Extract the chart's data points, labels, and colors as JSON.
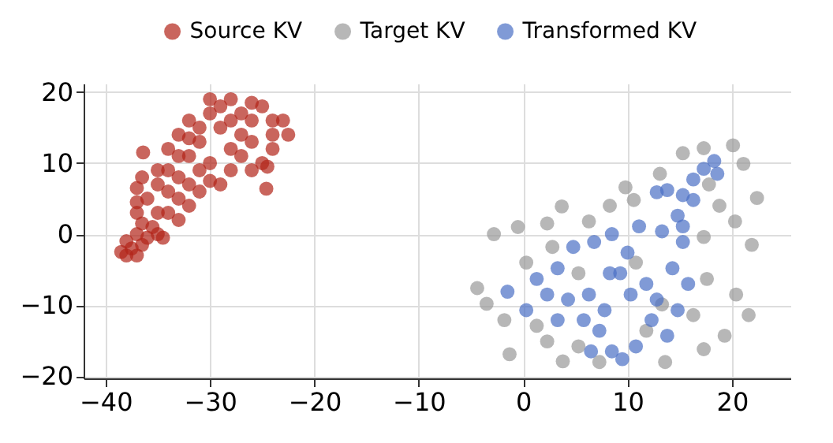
{
  "chart_data": {
    "type": "scatter",
    "xlim": [
      -42.1,
      25.6
    ],
    "ylim": [
      -20.3,
      21.2
    ],
    "xticks": [
      {
        "value": -40,
        "label": "−40"
      },
      {
        "value": -30,
        "label": "−30"
      },
      {
        "value": -20,
        "label": "−20"
      },
      {
        "value": -10,
        "label": "−10"
      },
      0,
      10,
      20
    ],
    "yticks": [
      {
        "value": -20,
        "label": "−20"
      },
      {
        "value": -10,
        "label": "−10"
      },
      0,
      10,
      20
    ],
    "grid": true,
    "legend": "top",
    "marker": "circle",
    "series": [
      {
        "name": "Source KV",
        "color": "#b22418",
        "x": [
          -38.5,
          -38,
          -37.5,
          -37,
          -36.5,
          -38,
          -37,
          -36,
          -35.5,
          -36.5,
          -37,
          -35,
          -36,
          -37,
          -36.5,
          -36.4,
          -35,
          -34,
          -34,
          -33,
          -33,
          -34,
          -33,
          -32,
          -32,
          -31,
          -31,
          -30,
          -30,
          -29,
          -28,
          -27,
          -26,
          -25,
          -24,
          -23,
          -22.5,
          -24,
          -24,
          -25,
          -24.6,
          -26,
          -26,
          -27,
          -28,
          -28,
          -29,
          -30,
          -30,
          -29,
          -31,
          -32,
          -32,
          -33,
          -35,
          -34.5,
          -33,
          -31,
          -27,
          -26,
          -28,
          -35,
          -34,
          -37,
          -32,
          -24.5
        ],
        "values": [
          -2.5,
          -3,
          -2,
          -3,
          -1.5,
          -1,
          0,
          -0.5,
          1,
          1.5,
          3,
          3,
          5,
          6.5,
          8,
          11.5,
          9,
          6,
          3,
          5,
          8,
          12,
          14,
          16,
          11,
          9,
          13,
          17,
          19,
          18,
          19,
          17,
          18.5,
          18,
          16,
          16,
          14,
          14,
          12,
          10,
          6.4,
          9,
          13,
          14,
          12,
          9,
          7,
          7.5,
          10,
          15,
          6,
          4,
          7,
          2,
          0,
          -0.5,
          11,
          15,
          11,
          16,
          16,
          7,
          9,
          4.5,
          13.5,
          9.5
        ]
      },
      {
        "name": "Target KV",
        "color": "#999999",
        "x": [
          -4.4,
          -3.5,
          -2.8,
          -0.5,
          -1.3,
          2.3,
          3.7,
          3.8,
          2.3,
          9.8,
          10.6,
          8.3,
          13.1,
          15.3,
          17.3,
          20.1,
          21.1,
          22.4,
          21.9,
          21.6,
          20.4,
          19.3,
          17.3,
          13.6,
          7.3,
          5.3,
          1.3,
          -1.8,
          0.3,
          2.8,
          6.3,
          10.8,
          17.3,
          18.8,
          17.6,
          16.3,
          11.8,
          5.3,
          13.3,
          20.3,
          17.8
        ],
        "values": [
          -7.6,
          -9.8,
          0,
          1,
          -16.9,
          1.5,
          3.9,
          -17.9,
          -15.1,
          6.6,
          4.8,
          4,
          8.5,
          11.4,
          12.1,
          12.5,
          9.9,
          5.1,
          -1.5,
          -11.4,
          -8.5,
          -14.3,
          -16.2,
          -18,
          -18,
          -15.8,
          -12.9,
          -12.1,
          -4,
          -1.8,
          1.8,
          -4,
          -0.4,
          4,
          -6.3,
          -11.4,
          -13.6,
          -5.5,
          -9.9,
          1.8,
          7
        ]
      },
      {
        "name": "Transformed KV",
        "color": "#4a6fc4",
        "x": [
          -1.5,
          0.3,
          1.3,
          3.3,
          4.8,
          6.8,
          8.5,
          10,
          8.3,
          6.3,
          4.3,
          2.3,
          5.8,
          6.5,
          8.5,
          9.5,
          10.8,
          12.3,
          13.8,
          14.8,
          15.8,
          14.3,
          11.8,
          11.1,
          13.3,
          14.8,
          15.3,
          13.8,
          15.3,
          16.3,
          17.3,
          18.3,
          18.6,
          12.8,
          10.3,
          7.8,
          9.3,
          15.3,
          3.3,
          7.3,
          12.8,
          16.3
        ],
        "values": [
          -8.1,
          -10.7,
          -6.3,
          -4.8,
          -1.8,
          -1.1,
          0,
          -2.6,
          -5.5,
          -8.5,
          -9.2,
          -8.5,
          -12.1,
          -16.5,
          -16.5,
          -17.6,
          -15.8,
          -12.1,
          -14.3,
          -10.7,
          -7,
          -4.8,
          -7,
          1.1,
          0.4,
          2.6,
          1.1,
          6.2,
          5.5,
          7.7,
          9.2,
          10.3,
          8.5,
          5.9,
          -8.5,
          -10.7,
          -5.5,
          -1.1,
          -12.1,
          -13.6,
          -9.2,
          4.8
        ]
      }
    ]
  }
}
